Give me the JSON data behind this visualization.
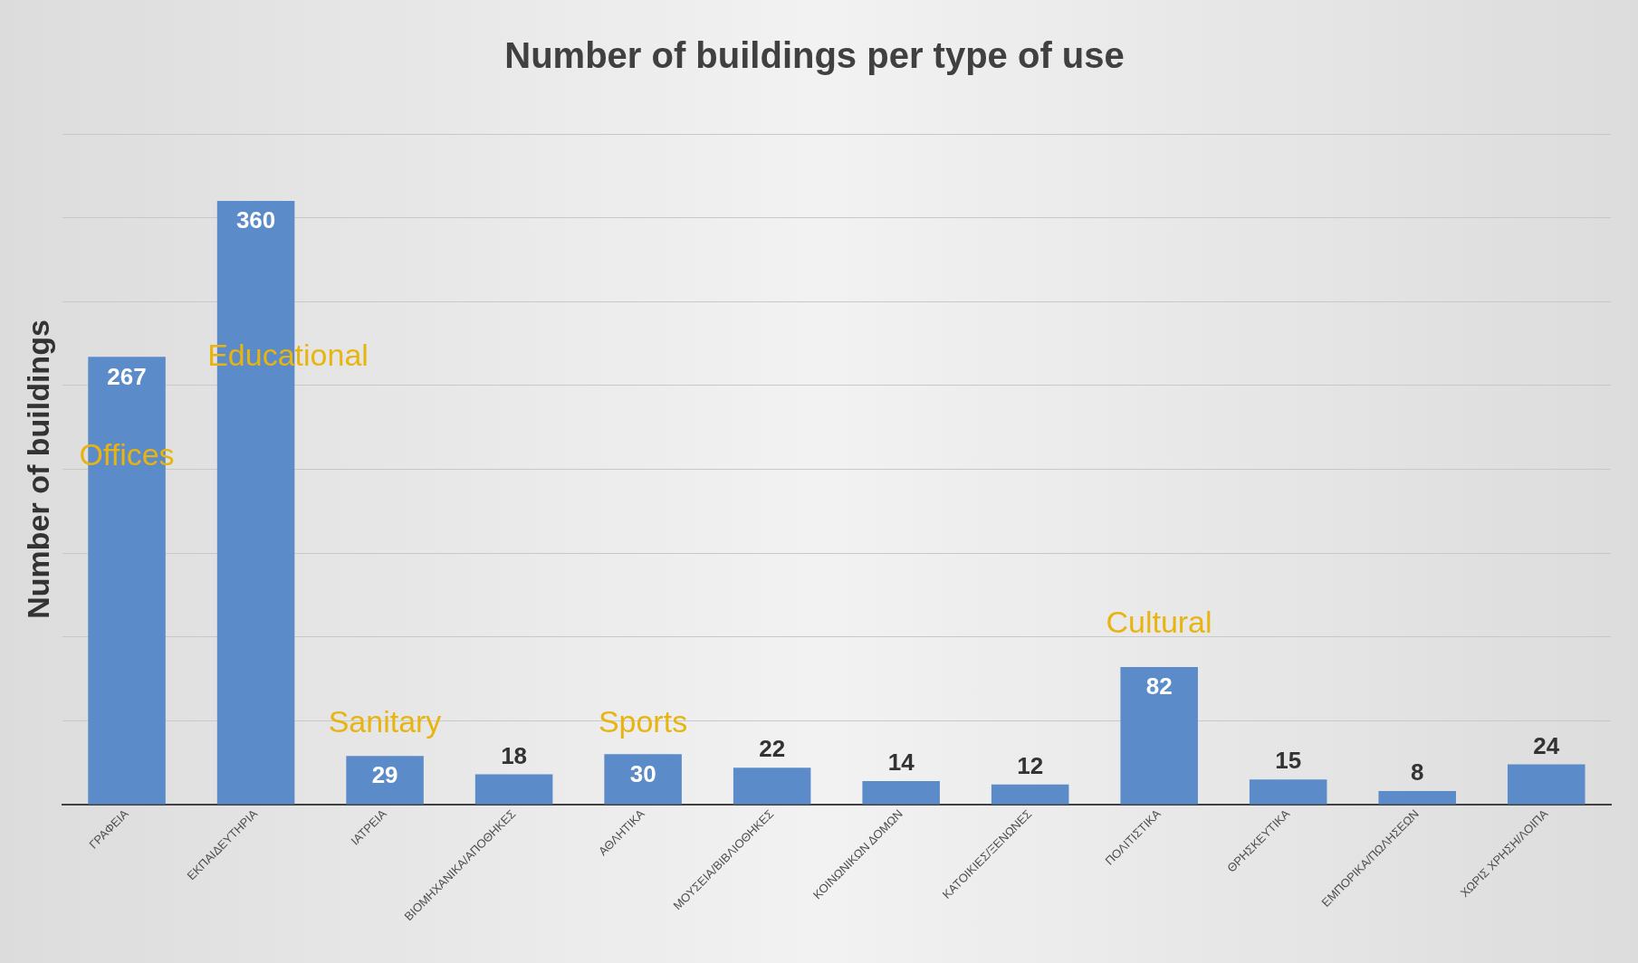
{
  "chart_data": {
    "type": "bar",
    "title": "Number of buildings per type of use",
    "ylabel": "Number of buildings",
    "categories": [
      "ΓΡΑΦΕΙΑ",
      "ΕΚΠΑΙΔΕΥΤΗΡΙΑ",
      "ΙΑΤΡΕΙΑ",
      "ΒΙΟΜΗΧΑΝΙΚΑ/ΑΠΟΘΗΚΕΣ",
      "ΑΘΛΗΤΙΚΑ",
      "ΜΟΥΣΕΙΑ/ΒΙΒΛΙΟΘΗΚΕΣ",
      "ΚΟΙΝΩΝΙΚΩΝ ΔΟΜΩΝ",
      "ΚΑΤΟΙΚΙΕΣ/ΞΕΝΩΝΕΣ",
      "ΠΟΛΙΤΙΣΤΙΚΑ",
      "ΘΡΗΣΚΕΥΤΙΚΑ",
      "ΕΜΠΟΡΙΚΑ/ΠΩΛΗΣΕΩΝ",
      "ΧΩΡΙΣ ΧΡΗΣΗ/ΛΟΙΠΑ"
    ],
    "values": [
      267,
      360,
      29,
      18,
      30,
      22,
      14,
      12,
      82,
      15,
      8,
      24
    ],
    "color": "#5b8bc9",
    "ylim": [
      0,
      400
    ],
    "yticks": [
      {
        "value": 0,
        "label": null
      },
      {
        "value": 50,
        "label": null
      },
      {
        "value": 100,
        "label": null
      },
      {
        "value": 150,
        "label": null
      },
      {
        "value": 200,
        "label": null
      },
      {
        "value": 250,
        "label": null
      },
      {
        "value": 300,
        "label": null
      },
      {
        "value": 350,
        "label": null
      },
      {
        "value": 400,
        "label": null
      }
    ],
    "tick_labels": "x",
    "grid": "y",
    "data_labels": true,
    "annotations": [
      "Offices",
      "Educational",
      "Sanitary",
      "Sports",
      "Cultural"
    ]
  }
}
